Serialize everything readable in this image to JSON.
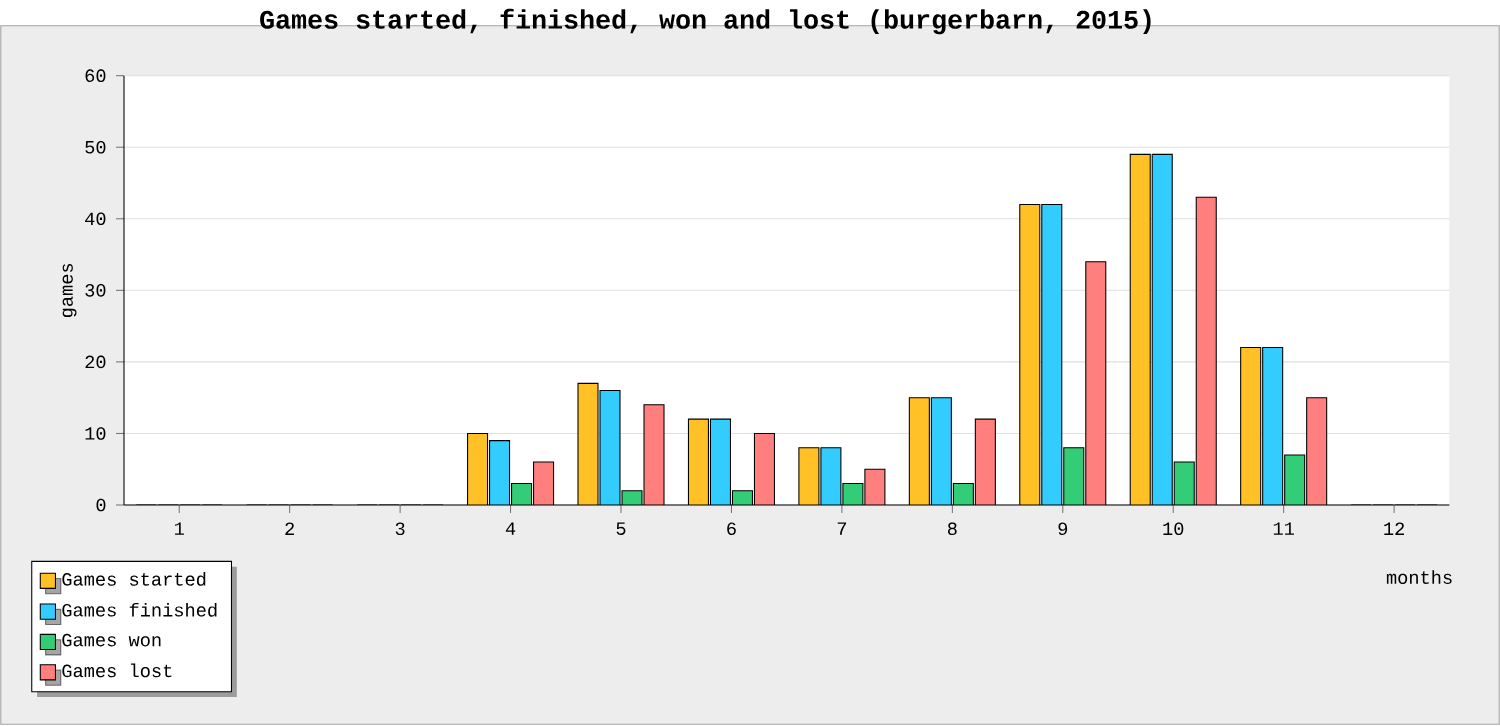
{
  "chart_data": {
    "type": "bar",
    "title": "Games started, finished, won and lost (burgerbarn, 2015)",
    "xlabel": "months",
    "ylabel": "games",
    "categories": [
      "1",
      "2",
      "3",
      "4",
      "5",
      "6",
      "7",
      "8",
      "9",
      "10",
      "11",
      "12"
    ],
    "series": [
      {
        "name": "Games started",
        "color": "#ffc125",
        "values": [
          0,
          0,
          0,
          10,
          17,
          12,
          8,
          15,
          42,
          49,
          22,
          0
        ]
      },
      {
        "name": "Games finished",
        "color": "#33ccff",
        "values": [
          0,
          0,
          0,
          9,
          16,
          12,
          8,
          15,
          42,
          49,
          22,
          0
        ]
      },
      {
        "name": "Games won",
        "color": "#33cc77",
        "values": [
          0,
          0,
          0,
          3,
          2,
          2,
          3,
          3,
          8,
          6,
          7,
          0
        ]
      },
      {
        "name": "Games lost",
        "color": "#ff7f7f",
        "values": [
          0,
          0,
          0,
          6,
          14,
          10,
          5,
          12,
          34,
          43,
          15,
          0
        ]
      }
    ],
    "ylim": [
      0,
      60
    ],
    "yticks": [
      0,
      10,
      20,
      30,
      40,
      50,
      60
    ],
    "grid": "y",
    "legend": "bottom left"
  }
}
